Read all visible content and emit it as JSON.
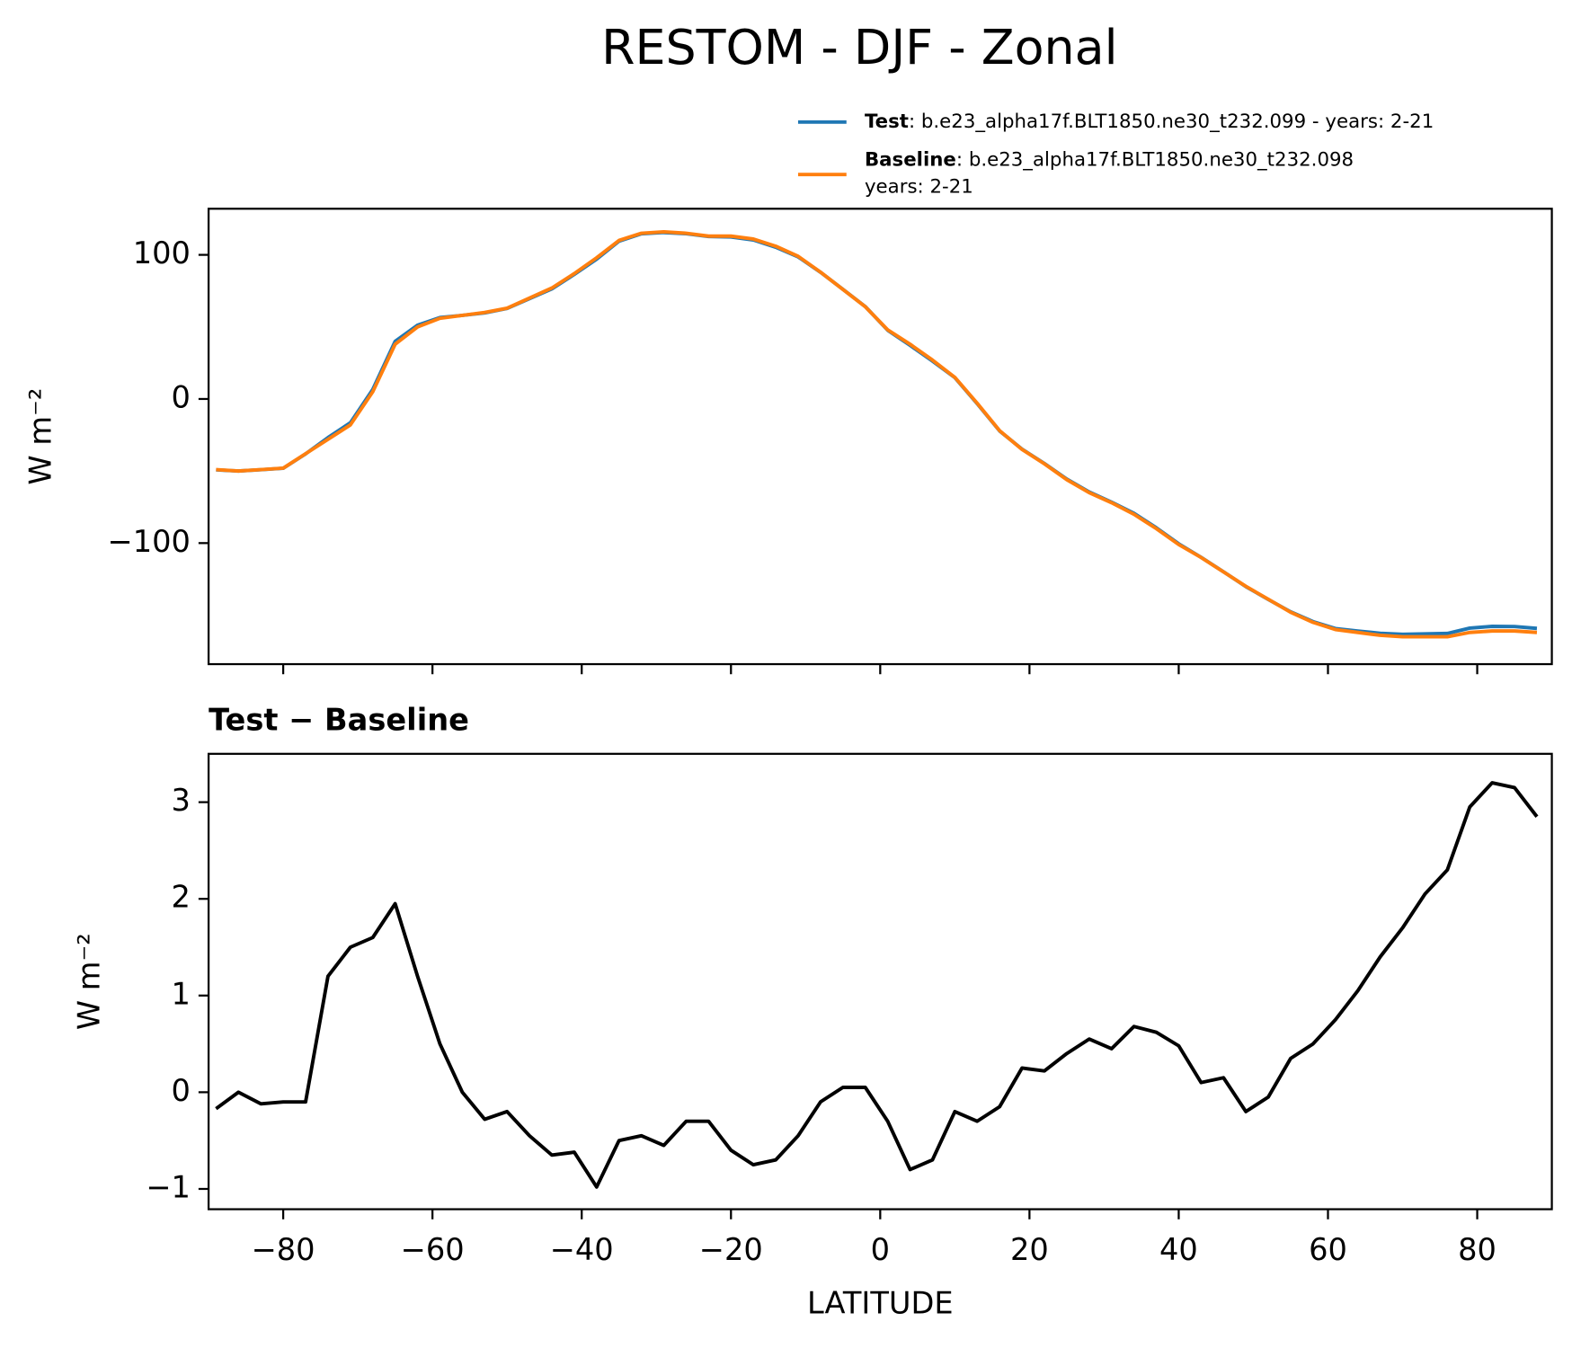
{
  "chart_data": [
    {
      "type": "line",
      "title": "RESTOM - DJF - Zonal",
      "ylabel": "W m⁻²",
      "x": [
        -89,
        -86,
        -83,
        -80,
        -77,
        -74,
        -71,
        -68,
        -65,
        -62,
        -59,
        -56,
        -53,
        -50,
        -47,
        -44,
        -41,
        -38,
        -35,
        -32,
        -29,
        -26,
        -23,
        -20,
        -17,
        -14,
        -11,
        -8,
        -5,
        -2,
        1,
        4,
        7,
        10,
        13,
        16,
        19,
        22,
        25,
        28,
        31,
        34,
        37,
        40,
        43,
        46,
        49,
        52,
        55,
        58,
        61,
        64,
        67,
        70,
        73,
        76,
        79,
        82,
        85,
        88
      ],
      "xlim": [
        -90,
        90
      ],
      "ylim": [
        -184,
        132
      ],
      "yticks": [
        {
          "value": -100,
          "label": "−100"
        },
        0,
        100
      ],
      "series": [
        {
          "name": "Test",
          "legend_text": [
            ": b.e23_alpha17f.BLT1850.ne30_t232.099 - years: 2-21"
          ],
          "color": "#1f77b4",
          "values": [
            -49.2,
            -50,
            -49.1,
            -48.1,
            -38.1,
            -26.8,
            -16.5,
            6.6,
            40,
            51.2,
            56.5,
            58,
            59.7,
            62.8,
            69.6,
            76.4,
            86.4,
            97,
            109.5,
            114.6,
            115.5,
            114.7,
            112.7,
            112.4,
            110.3,
            105.3,
            98.6,
            87.9,
            76.1,
            64.1,
            47.7,
            37.2,
            26.3,
            14.8,
            -3.3,
            -22.2,
            -34.8,
            -44.8,
            -55.6,
            -64.5,
            -71.6,
            -79.3,
            -89.4,
            -100.5,
            -109.9,
            -119.9,
            -130.2,
            -139.1,
            -147.7,
            -154.5,
            -159.3,
            -161,
            -162.6,
            -163.3,
            -163,
            -162.7,
            -159,
            -157.8,
            -157.9,
            -159.2
          ]
        },
        {
          "name": "Baseline",
          "legend_text": [
            ": b.e23_alpha17f.BLT1850.ne30_t232.098",
            "years: 2-21"
          ],
          "color": "#ff7f0e",
          "values": [
            -49,
            -50,
            -49,
            -48,
            -38,
            -28,
            -18,
            5,
            38,
            50,
            56,
            58,
            60,
            63,
            70,
            77,
            87,
            98,
            110,
            115,
            116,
            115,
            113,
            113,
            111,
            106,
            99,
            88,
            76,
            64,
            48,
            38,
            27,
            15,
            -3,
            -22,
            -35,
            -45,
            -56,
            -65,
            -72,
            -80,
            -90,
            -101,
            -110,
            -120,
            -130,
            -139,
            -148,
            -155,
            -160,
            -162,
            -164,
            -165,
            -165,
            -165,
            -162,
            -161,
            -161,
            -162
          ]
        }
      ]
    },
    {
      "type": "line",
      "title": "Test − Baseline",
      "ylabel": "W m⁻²",
      "xlabel": "LATITUDE",
      "x": [
        -89,
        -86,
        -83,
        -80,
        -77,
        -74,
        -71,
        -68,
        -65,
        -62,
        -59,
        -56,
        -53,
        -50,
        -47,
        -44,
        -41,
        -38,
        -35,
        -32,
        -29,
        -26,
        -23,
        -20,
        -17,
        -14,
        -11,
        -8,
        -5,
        -2,
        1,
        4,
        7,
        10,
        13,
        16,
        19,
        22,
        25,
        28,
        31,
        34,
        37,
        40,
        43,
        46,
        49,
        52,
        55,
        58,
        61,
        64,
        67,
        70,
        73,
        76,
        79,
        82,
        85,
        88
      ],
      "xlim": [
        -90,
        90
      ],
      "ylim": [
        -1.21,
        3.5
      ],
      "xticks": [
        {
          "value": -80,
          "label": "−80"
        },
        {
          "value": -60,
          "label": "−60"
        },
        {
          "value": -40,
          "label": "−40"
        },
        {
          "value": -20,
          "label": "−20"
        },
        0,
        20,
        40,
        60,
        80
      ],
      "yticks": [
        {
          "value": -1,
          "label": "−1"
        },
        0,
        1,
        2,
        3
      ],
      "series": [
        {
          "color": "#000000",
          "values": [
            -0.17,
            0,
            -0.12,
            -0.1,
            -0.1,
            1.2,
            1.5,
            1.6,
            1.95,
            1.2,
            0.5,
            0,
            -0.28,
            -0.2,
            -0.45,
            -0.65,
            -0.62,
            -0.98,
            -0.5,
            -0.45,
            -0.55,
            -0.3,
            -0.3,
            -0.6,
            -0.75,
            -0.7,
            -0.45,
            -0.1,
            0.05,
            0.05,
            -0.3,
            -0.8,
            -0.7,
            -0.2,
            -0.3,
            -0.15,
            0.25,
            0.22,
            0.4,
            0.55,
            0.45,
            0.68,
            0.62,
            0.48,
            0.1,
            0.15,
            -0.2,
            -0.05,
            0.35,
            0.5,
            0.75,
            1.05,
            1.4,
            1.7,
            2.05,
            2.3,
            2.95,
            3.2,
            3.15,
            2.85
          ]
        }
      ]
    }
  ]
}
